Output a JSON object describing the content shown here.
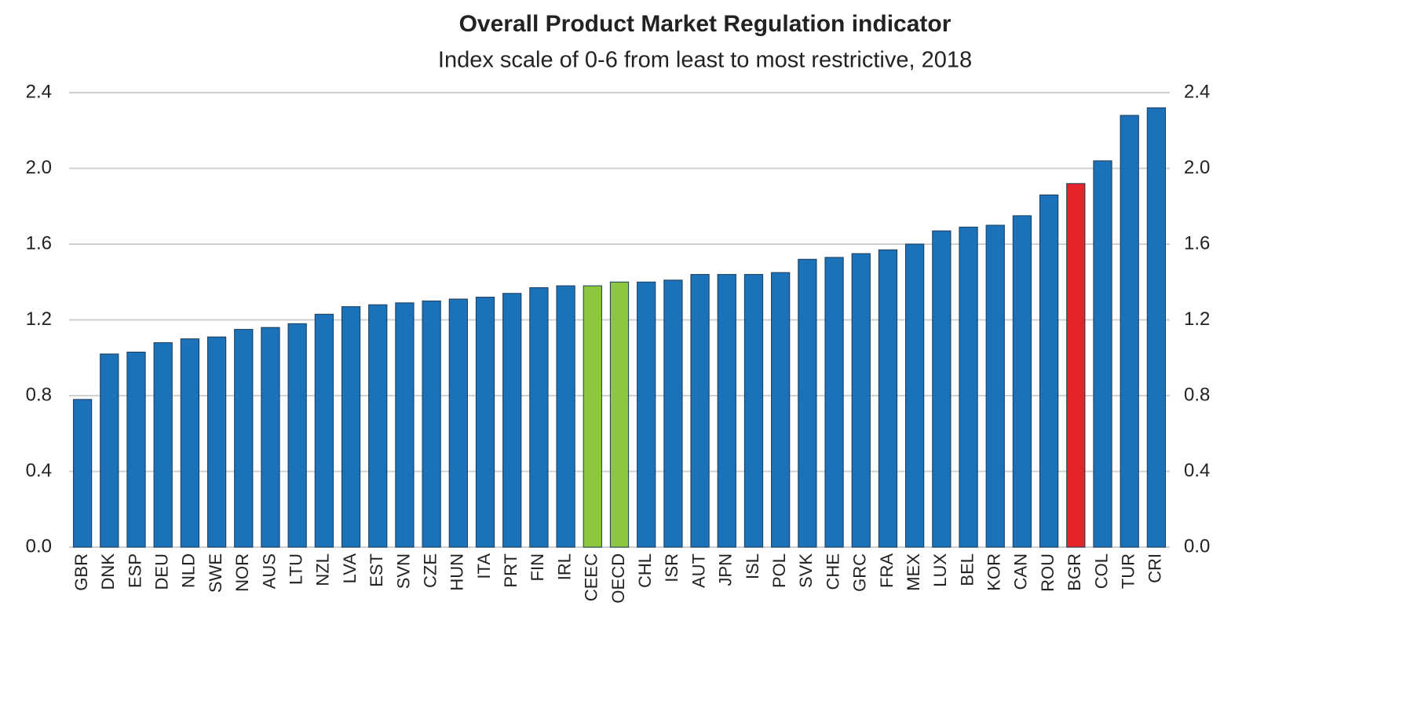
{
  "chart_data": {
    "type": "bar",
    "title": "Overall Product Market Regulation indicator",
    "subtitle": "Index scale of 0-6 from least to most restrictive, 2018",
    "categories": [
      "GBR",
      "DNK",
      "ESP",
      "DEU",
      "NLD",
      "SWE",
      "NOR",
      "AUS",
      "LTU",
      "NZL",
      "LVA",
      "EST",
      "SVN",
      "CZE",
      "HUN",
      "ITA",
      "PRT",
      "FIN",
      "IRL",
      "CEEC",
      "OECD",
      "CHL",
      "ISR",
      "AUT",
      "JPN",
      "ISL",
      "POL",
      "SVK",
      "CHE",
      "GRC",
      "FRA",
      "MEX",
      "LUX",
      "BEL",
      "KOR",
      "CAN",
      "ROU",
      "BGR",
      "COL",
      "TUR",
      "CRI"
    ],
    "values": [
      0.78,
      1.02,
      1.03,
      1.08,
      1.1,
      1.11,
      1.15,
      1.16,
      1.18,
      1.23,
      1.27,
      1.28,
      1.29,
      1.3,
      1.31,
      1.32,
      1.34,
      1.37,
      1.38,
      1.38,
      1.4,
      1.4,
      1.41,
      1.44,
      1.44,
      1.44,
      1.45,
      1.52,
      1.53,
      1.55,
      1.57,
      1.6,
      1.67,
      1.69,
      1.7,
      1.75,
      1.86,
      1.92,
      2.04,
      2.28,
      2.32
    ],
    "colors": [
      "#1b72b8",
      "#1b72b8",
      "#1b72b8",
      "#1b72b8",
      "#1b72b8",
      "#1b72b8",
      "#1b72b8",
      "#1b72b8",
      "#1b72b8",
      "#1b72b8",
      "#1b72b8",
      "#1b72b8",
      "#1b72b8",
      "#1b72b8",
      "#1b72b8",
      "#1b72b8",
      "#1b72b8",
      "#1b72b8",
      "#1b72b8",
      "#8dc63f",
      "#8dc63f",
      "#1b72b8",
      "#1b72b8",
      "#1b72b8",
      "#1b72b8",
      "#1b72b8",
      "#1b72b8",
      "#1b72b8",
      "#1b72b8",
      "#1b72b8",
      "#1b72b8",
      "#1b72b8",
      "#1b72b8",
      "#1b72b8",
      "#1b72b8",
      "#1b72b8",
      "#1b72b8",
      "#e3242b",
      "#1b72b8",
      "#1b72b8",
      "#1b72b8"
    ],
    "ylim": [
      0,
      2.4
    ],
    "yticks": [
      {
        "value": 0,
        "label": "0.0"
      },
      0.4,
      0.8,
      1.2,
      1.6,
      {
        "value": 2,
        "label": "2.0"
      },
      2.4
    ],
    "grid": true
  }
}
